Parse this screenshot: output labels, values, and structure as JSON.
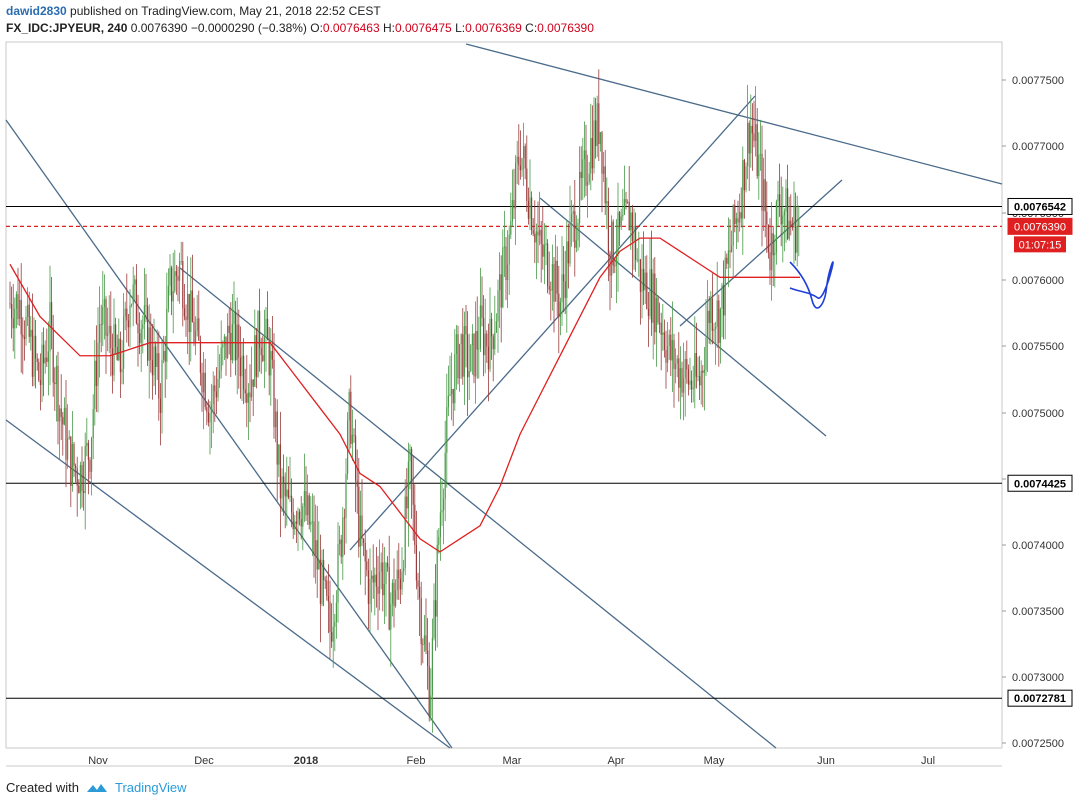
{
  "header": {
    "author": "dawid2830",
    "published_text": "published on TradingView.com, May 21, 2018 22:52 CEST",
    "symbol": "FX_IDC:JPYEUR, 240",
    "last": "0.0076390",
    "change": "−0.0000290 (−0.38%)",
    "o_label": "O:",
    "o_value": "0.0076463",
    "h_label": "H:",
    "h_value": "0.0076475",
    "l_label": "L:",
    "l_value": "0.0076369",
    "c_label": "C:",
    "c_value": "0.0076390"
  },
  "footer": {
    "created_with": "Created with",
    "brand": "TradingView"
  },
  "colors": {
    "candle_up": "#4a9a4a",
    "candle_down": "#9a3b3b",
    "ma": "#e02020",
    "trend": "#4a6b8a",
    "level": "#000000",
    "current": "#e02020",
    "sketch": "#1f3fd8",
    "axis_bg": "#ffffff"
  },
  "chart_data": {
    "type": "candlestick",
    "ylim": [
      0.00724,
      0.00778
    ],
    "y_ticks": [
      "0.0077500",
      "0.0077000",
      "0.0076500",
      "0.0076000",
      "0.0075500",
      "0.0075000",
      "0.0074500",
      "0.0074000",
      "0.0073500",
      "0.0073000",
      "0.0072500"
    ],
    "x_ticks": [
      "Nov",
      "Dec",
      "2018",
      "Feb",
      "Mar",
      "Apr",
      "May",
      "Jun",
      "Jul"
    ],
    "price_labels": [
      "0.0076542",
      "0.0076390",
      "0.0074425",
      "0.0072781"
    ],
    "countdown": "01:07:15",
    "horizontal_levels": [
      0.0076542,
      0.0074425,
      0.0072781
    ],
    "current_price": 0.007639,
    "close_path": [
      [
        0,
        0.00758
      ],
      [
        10,
        0.00758
      ],
      [
        20,
        0.00755
      ],
      [
        30,
        0.00752
      ],
      [
        40,
        0.00756
      ],
      [
        50,
        0.0075
      ],
      [
        60,
        0.00746
      ],
      [
        70,
        0.00745
      ],
      [
        80,
        0.00747
      ],
      [
        90,
        0.00757
      ],
      [
        100,
        0.00755
      ],
      [
        110,
        0.00753
      ],
      [
        120,
        0.00759
      ],
      [
        130,
        0.00757
      ],
      [
        140,
        0.00755
      ],
      [
        150,
        0.00751
      ],
      [
        160,
        0.00759
      ],
      [
        170,
        0.00761
      ],
      [
        180,
        0.00757
      ],
      [
        190,
        0.00754
      ],
      [
        200,
        0.0075
      ],
      [
        210,
        0.00753
      ],
      [
        220,
        0.00756
      ],
      [
        230,
        0.00754
      ],
      [
        240,
        0.00752
      ],
      [
        250,
        0.00756
      ],
      [
        260,
        0.00754
      ],
      [
        270,
        0.00744
      ],
      [
        280,
        0.00742
      ],
      [
        290,
        0.00743
      ],
      [
        300,
        0.00741
      ],
      [
        310,
        0.00737
      ],
      [
        320,
        0.00733
      ],
      [
        330,
        0.00739
      ],
      [
        340,
        0.0075
      ],
      [
        350,
        0.0074
      ],
      [
        360,
        0.00736
      ],
      [
        370,
        0.00738
      ],
      [
        380,
        0.00735
      ],
      [
        390,
        0.00737
      ],
      [
        400,
        0.00745
      ],
      [
        410,
        0.00735
      ],
      [
        420,
        0.00728
      ],
      [
        430,
        0.00742
      ],
      [
        440,
        0.00751
      ],
      [
        450,
        0.00755
      ],
      [
        460,
        0.00753
      ],
      [
        470,
        0.00756
      ],
      [
        480,
        0.00755
      ],
      [
        490,
        0.00759
      ],
      [
        500,
        0.00763
      ],
      [
        510,
        0.0077
      ],
      [
        520,
        0.00766
      ],
      [
        530,
        0.00762
      ],
      [
        540,
        0.00761
      ],
      [
        550,
        0.00758
      ],
      [
        560,
        0.00763
      ],
      [
        570,
        0.00766
      ],
      [
        580,
        0.0077
      ],
      [
        590,
        0.00772
      ],
      [
        600,
        0.00762
      ],
      [
        610,
        0.00763
      ],
      [
        620,
        0.00765
      ],
      [
        630,
        0.0076
      ],
      [
        640,
        0.00759
      ],
      [
        650,
        0.00757
      ],
      [
        660,
        0.00754
      ],
      [
        670,
        0.00753
      ],
      [
        680,
        0.00752
      ],
      [
        690,
        0.00752
      ],
      [
        700,
        0.00758
      ],
      [
        710,
        0.00757
      ],
      [
        720,
        0.00762
      ],
      [
        730,
        0.00766
      ],
      [
        740,
        0.00772
      ],
      [
        750,
        0.00768
      ],
      [
        760,
        0.00762
      ],
      [
        770,
        0.00766
      ],
      [
        780,
        0.00764
      ],
      [
        790,
        0.00764
      ]
    ],
    "ma_path": [
      [
        0,
        0.00761
      ],
      [
        30,
        0.00757
      ],
      [
        70,
        0.00754
      ],
      [
        100,
        0.00754
      ],
      [
        140,
        0.00755
      ],
      [
        180,
        0.00755
      ],
      [
        220,
        0.00755
      ],
      [
        260,
        0.00755
      ],
      [
        280,
        0.00753
      ],
      [
        310,
        0.0075
      ],
      [
        330,
        0.00748
      ],
      [
        350,
        0.00745
      ],
      [
        370,
        0.00744
      ],
      [
        390,
        0.00742
      ],
      [
        410,
        0.0074
      ],
      [
        430,
        0.00739
      ],
      [
        450,
        0.0074
      ],
      [
        470,
        0.00741
      ],
      [
        490,
        0.00744
      ],
      [
        510,
        0.00748
      ],
      [
        530,
        0.00751
      ],
      [
        550,
        0.00754
      ],
      [
        570,
        0.00757
      ],
      [
        590,
        0.0076
      ],
      [
        610,
        0.00762
      ],
      [
        630,
        0.00763
      ],
      [
        650,
        0.00763
      ],
      [
        670,
        0.00762
      ],
      [
        690,
        0.00761
      ],
      [
        710,
        0.0076
      ],
      [
        730,
        0.0076
      ],
      [
        750,
        0.0076
      ],
      [
        770,
        0.0076
      ],
      [
        790,
        0.0076
      ]
    ]
  }
}
